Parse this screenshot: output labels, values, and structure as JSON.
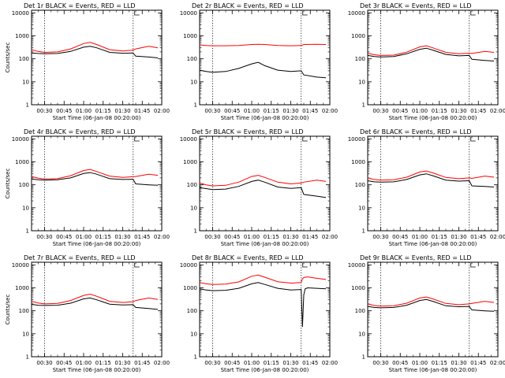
{
  "chart_data": [
    {
      "type": "line",
      "title": "Det 1r BLACK = Events, RED = LLD",
      "ylabel": "Counts/sec",
      "xlabel": "Start Time (06-Jan-08 00:20:00)",
      "x_ticks": [
        "00:30",
        "00:45",
        "01:00",
        "01:15",
        "01:30",
        "01:45",
        "02:00"
      ],
      "y_ticks": [
        "1",
        "10",
        "100",
        "1000",
        "10000"
      ],
      "ylim": [
        1,
        13000
      ],
      "xlim_minutes": [
        20,
        120
      ],
      "vlines_minutes": [
        30,
        98
      ],
      "log_y": true,
      "grid": false,
      "series": [
        {
          "color": "#000000",
          "x": [
            20,
            25,
            30,
            40,
            50,
            60,
            65,
            70,
            80,
            90,
            98,
            100,
            110,
            117
          ],
          "y": [
            180,
            170,
            165,
            170,
            210,
            320,
            350,
            300,
            190,
            175,
            180,
            130,
            120,
            110
          ]
        },
        {
          "color": "#ff0000",
          "x": [
            20,
            25,
            30,
            40,
            50,
            60,
            65,
            70,
            80,
            90,
            98,
            100,
            110,
            117
          ],
          "y": [
            250,
            210,
            190,
            200,
            270,
            460,
            520,
            420,
            250,
            220,
            240,
            270,
            350,
            300
          ]
        }
      ]
    },
    {
      "type": "line",
      "title": "Det 2r BLACK = Events, RED = LLD",
      "ylabel": "",
      "xlabel": "Start Time (06-Jan-08 00:20:00)",
      "x_ticks": [
        "00:30",
        "00:45",
        "01:00",
        "01:15",
        "01:30",
        "01:45",
        "02:00"
      ],
      "y_ticks": [
        "1",
        "10",
        "100",
        "1000",
        "10000"
      ],
      "ylim": [
        1,
        13000
      ],
      "xlim_minutes": [
        20,
        120
      ],
      "vlines_minutes": [
        30,
        98
      ],
      "log_y": true,
      "grid": false,
      "series": [
        {
          "color": "#000000",
          "x": [
            20,
            25,
            30,
            40,
            50,
            60,
            65,
            70,
            80,
            90,
            98,
            100,
            110,
            117
          ],
          "y": [
            32,
            28,
            26,
            28,
            38,
            60,
            70,
            50,
            32,
            28,
            30,
            20,
            16,
            15
          ]
        },
        {
          "color": "#ff0000",
          "x": [
            20,
            25,
            30,
            40,
            50,
            60,
            65,
            70,
            80,
            90,
            98,
            100,
            110,
            117
          ],
          "y": [
            400,
            380,
            370,
            370,
            380,
            420,
            430,
            420,
            380,
            370,
            380,
            420,
            430,
            420
          ]
        }
      ]
    },
    {
      "type": "line",
      "title": "Det 3r BLACK = Events, RED = LLD",
      "ylabel": "",
      "xlabel": "Start Time (06-Jan-08 00:20:00)",
      "x_ticks": [
        "00:30",
        "00:45",
        "01:00",
        "01:15",
        "01:30",
        "01:45",
        "02:00"
      ],
      "y_ticks": [
        "1",
        "10",
        "100",
        "1000",
        "10000"
      ],
      "ylim": [
        1,
        13000
      ],
      "xlim_minutes": [
        20,
        120
      ],
      "vlines_minutes": [
        30,
        98
      ],
      "log_y": true,
      "grid": false,
      "series": [
        {
          "color": "#000000",
          "x": [
            20,
            25,
            30,
            40,
            50,
            60,
            65,
            70,
            80,
            90,
            98,
            100,
            110,
            117
          ],
          "y": [
            140,
            125,
            120,
            125,
            165,
            260,
            290,
            240,
            155,
            135,
            140,
            95,
            85,
            80
          ]
        },
        {
          "color": "#ff0000",
          "x": [
            20,
            25,
            30,
            40,
            50,
            60,
            65,
            70,
            80,
            90,
            98,
            100,
            110,
            117
          ],
          "y": [
            175,
            150,
            140,
            145,
            195,
            330,
            370,
            300,
            190,
            165,
            175,
            170,
            210,
            190
          ]
        }
      ]
    },
    {
      "type": "line",
      "title": "Det 4r BLACK = Events, RED = LLD",
      "ylabel": "Counts/sec",
      "xlabel": "Start Time (06-Jan-08 00:20:00)",
      "x_ticks": [
        "00:30",
        "00:45",
        "01:00",
        "01:15",
        "01:30",
        "01:45",
        "02:00"
      ],
      "y_ticks": [
        "1",
        "10",
        "100",
        "1000",
        "10000"
      ],
      "ylim": [
        1,
        13000
      ],
      "xlim_minutes": [
        20,
        120
      ],
      "vlines_minutes": [
        30,
        98
      ],
      "log_y": true,
      "grid": false,
      "series": [
        {
          "color": "#000000",
          "x": [
            20,
            25,
            30,
            40,
            50,
            60,
            65,
            70,
            80,
            90,
            98,
            100,
            110,
            117
          ],
          "y": [
            180,
            165,
            160,
            165,
            200,
            310,
            340,
            290,
            185,
            170,
            175,
            110,
            100,
            95
          ]
        },
        {
          "color": "#ff0000",
          "x": [
            20,
            25,
            30,
            40,
            50,
            60,
            65,
            70,
            80,
            90,
            98,
            100,
            110,
            117
          ],
          "y": [
            230,
            195,
            180,
            185,
            250,
            420,
            470,
            380,
            240,
            210,
            225,
            230,
            290,
            260
          ]
        }
      ]
    },
    {
      "type": "line",
      "title": "Det 5r BLACK = Events, RED = LLD",
      "ylabel": "",
      "xlabel": "Start Time (06-Jan-08 00:20:00)",
      "x_ticks": [
        "00:30",
        "00:45",
        "01:00",
        "01:15",
        "01:30",
        "01:45",
        "02:00"
      ],
      "y_ticks": [
        "1",
        "10",
        "100",
        "1000",
        "10000"
      ],
      "ylim": [
        1,
        13000
      ],
      "xlim_minutes": [
        20,
        120
      ],
      "vlines_minutes": [
        30,
        98
      ],
      "log_y": true,
      "grid": false,
      "series": [
        {
          "color": "#000000",
          "x": [
            20,
            25,
            30,
            40,
            50,
            60,
            65,
            70,
            80,
            90,
            98,
            100,
            110,
            117
          ],
          "y": [
            75,
            68,
            62,
            65,
            85,
            140,
            160,
            130,
            80,
            70,
            75,
            38,
            32,
            28
          ]
        },
        {
          "color": "#ff0000",
          "x": [
            20,
            25,
            30,
            40,
            50,
            60,
            65,
            70,
            80,
            90,
            98,
            100,
            110,
            117
          ],
          "y": [
            120,
            100,
            90,
            95,
            130,
            230,
            260,
            210,
            130,
            110,
            120,
            130,
            160,
            140
          ]
        }
      ]
    },
    {
      "type": "line",
      "title": "Det 6r BLACK = Events, RED = LLD",
      "ylabel": "",
      "xlabel": "Start Time (06-Jan-08 00:20:00)",
      "x_ticks": [
        "00:30",
        "00:45",
        "01:00",
        "01:15",
        "01:30",
        "01:45",
        "02:00"
      ],
      "y_ticks": [
        "1",
        "10",
        "100",
        "1000",
        "10000"
      ],
      "ylim": [
        1,
        13000
      ],
      "xlim_minutes": [
        20,
        120
      ],
      "vlines_minutes": [
        30,
        98
      ],
      "log_y": true,
      "grid": false,
      "series": [
        {
          "color": "#000000",
          "x": [
            20,
            25,
            30,
            40,
            50,
            60,
            65,
            70,
            80,
            90,
            98,
            100,
            110,
            117
          ],
          "y": [
            150,
            135,
            130,
            135,
            170,
            270,
            300,
            250,
            160,
            145,
            150,
            90,
            85,
            80
          ]
        },
        {
          "color": "#ff0000",
          "x": [
            20,
            25,
            30,
            40,
            50,
            60,
            65,
            70,
            80,
            90,
            98,
            100,
            110,
            117
          ],
          "y": [
            200,
            170,
            160,
            165,
            215,
            360,
            400,
            330,
            210,
            185,
            200,
            190,
            240,
            215
          ]
        }
      ]
    },
    {
      "type": "line",
      "title": "Det 7r BLACK = Events, RED = LLD",
      "ylabel": "Counts/sec",
      "xlabel": "Start Time (06-Jan-08 00:20:00)",
      "x_ticks": [
        "00:30",
        "00:45",
        "01:00",
        "01:15",
        "01:30",
        "01:45",
        "02:00"
      ],
      "y_ticks": [
        "1",
        "10",
        "100",
        "1000",
        "10000"
      ],
      "ylim": [
        1,
        13000
      ],
      "xlim_minutes": [
        20,
        120
      ],
      "vlines_minutes": [
        30,
        98
      ],
      "log_y": true,
      "grid": false,
      "series": [
        {
          "color": "#000000",
          "x": [
            20,
            25,
            30,
            40,
            50,
            60,
            65,
            70,
            80,
            90,
            98,
            100,
            110,
            117
          ],
          "y": [
            190,
            175,
            170,
            175,
            215,
            330,
            360,
            300,
            195,
            180,
            185,
            140,
            125,
            115
          ]
        },
        {
          "color": "#ff0000",
          "x": [
            20,
            25,
            30,
            40,
            50,
            60,
            65,
            70,
            80,
            90,
            98,
            100,
            110,
            117
          ],
          "y": [
            260,
            220,
            200,
            210,
            280,
            470,
            530,
            430,
            260,
            230,
            250,
            280,
            360,
            310
          ]
        }
      ]
    },
    {
      "type": "line",
      "title": "Det 8r BLACK = Events, RED = LLD",
      "ylabel": "",
      "xlabel": "Start Time (06-Jan-08 00:20:00)",
      "x_ticks": [
        "00:30",
        "00:45",
        "01:00",
        "01:15",
        "01:30",
        "01:45",
        "02:00"
      ],
      "y_ticks": [
        "1",
        "10",
        "100",
        "1000",
        "10000"
      ],
      "ylim": [
        1,
        13000
      ],
      "xlim_minutes": [
        20,
        120
      ],
      "vlines_minutes": [
        30,
        98
      ],
      "log_y": true,
      "grid": false,
      "series": [
        {
          "color": "#000000",
          "x": [
            20,
            25,
            30,
            40,
            50,
            60,
            65,
            70,
            80,
            90,
            98,
            99,
            100,
            101,
            103,
            110,
            117
          ],
          "y": [
            900,
            800,
            750,
            780,
            950,
            1500,
            1700,
            1400,
            950,
            800,
            850,
            20,
            500,
            900,
            1000,
            950,
            900
          ]
        },
        {
          "color": "#ff0000",
          "x": [
            20,
            25,
            30,
            40,
            50,
            60,
            65,
            70,
            80,
            90,
            98,
            99,
            100,
            103,
            110,
            117
          ],
          "y": [
            1700,
            1500,
            1400,
            1450,
            1800,
            3200,
            3600,
            2900,
            1850,
            1600,
            1700,
            2500,
            2800,
            3000,
            2600,
            2300
          ]
        }
      ]
    },
    {
      "type": "line",
      "title": "Det 9r BLACK = Events, RED = LLD",
      "ylabel": "",
      "xlabel": "Start Time (06-Jan-08 00:20:00)",
      "x_ticks": [
        "00:30",
        "00:45",
        "01:00",
        "01:15",
        "01:30",
        "01:45",
        "02:00"
      ],
      "y_ticks": [
        "1",
        "10",
        "100",
        "1000",
        "10000"
      ],
      "ylim": [
        1,
        13000
      ],
      "xlim_minutes": [
        20,
        120
      ],
      "vlines_minutes": [
        30,
        98
      ],
      "log_y": true,
      "grid": false,
      "series": [
        {
          "color": "#000000",
          "x": [
            20,
            25,
            30,
            40,
            50,
            60,
            65,
            70,
            80,
            90,
            98,
            100,
            110,
            117
          ],
          "y": [
            155,
            140,
            135,
            140,
            175,
            280,
            310,
            260,
            165,
            150,
            155,
            110,
            100,
            95
          ]
        },
        {
          "color": "#ff0000",
          "x": [
            20,
            25,
            30,
            40,
            50,
            60,
            65,
            70,
            80,
            90,
            98,
            100,
            110,
            117
          ],
          "y": [
            200,
            170,
            160,
            165,
            215,
            360,
            400,
            330,
            210,
            185,
            200,
            210,
            260,
            230
          ]
        }
      ]
    }
  ]
}
